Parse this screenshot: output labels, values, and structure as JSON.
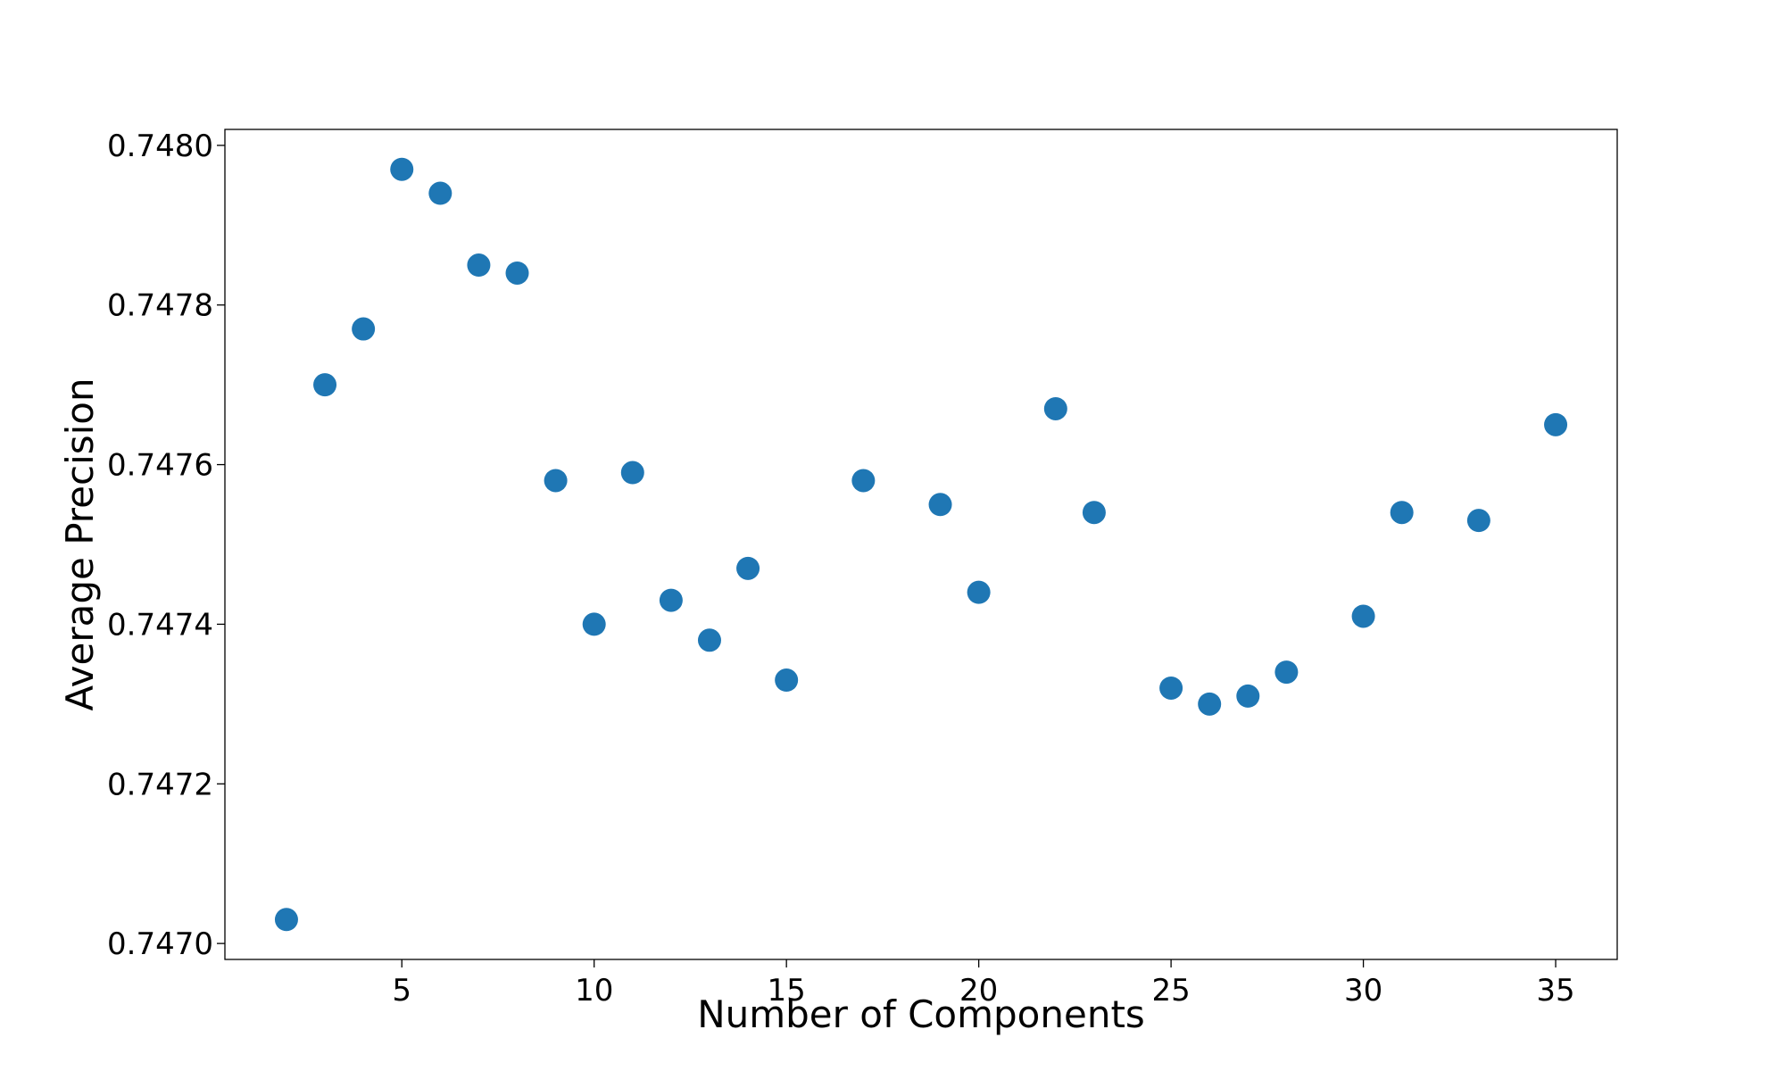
{
  "chart_data": {
    "type": "scatter",
    "title": "",
    "xlabel": "Number of Components",
    "ylabel": "Average Precision",
    "xlim": [
      0.4,
      36.6
    ],
    "ylim": [
      0.74698,
      0.74802
    ],
    "xticks": [
      5,
      10,
      15,
      20,
      25,
      30,
      35
    ],
    "xtick_labels": [
      "5",
      "10",
      "15",
      "20",
      "25",
      "30",
      "35"
    ],
    "yticks": [
      0.747,
      0.7472,
      0.7474,
      0.7476,
      0.7478,
      0.748
    ],
    "ytick_labels": [
      "0.7470",
      "0.7472",
      "0.7474",
      "0.7476",
      "0.7478",
      "0.7480"
    ],
    "grid": false,
    "color": "#1f77b4",
    "series": [
      {
        "x": [
          2,
          3,
          4,
          5,
          6,
          7,
          8,
          9,
          10,
          11,
          12,
          13,
          14,
          15,
          17,
          19,
          20,
          22,
          23,
          25,
          26,
          27,
          28,
          30,
          31,
          33,
          35
        ],
        "y": [
          0.74703,
          0.7477,
          0.74777,
          0.74797,
          0.74794,
          0.74785,
          0.74784,
          0.74758,
          0.7474,
          0.74759,
          0.74743,
          0.74738,
          0.74747,
          0.74733,
          0.74758,
          0.74755,
          0.74744,
          0.74767,
          0.74754,
          0.74732,
          0.7473,
          0.74731,
          0.74734,
          0.74741,
          0.74754,
          0.74753,
          0.74765
        ]
      }
    ]
  }
}
